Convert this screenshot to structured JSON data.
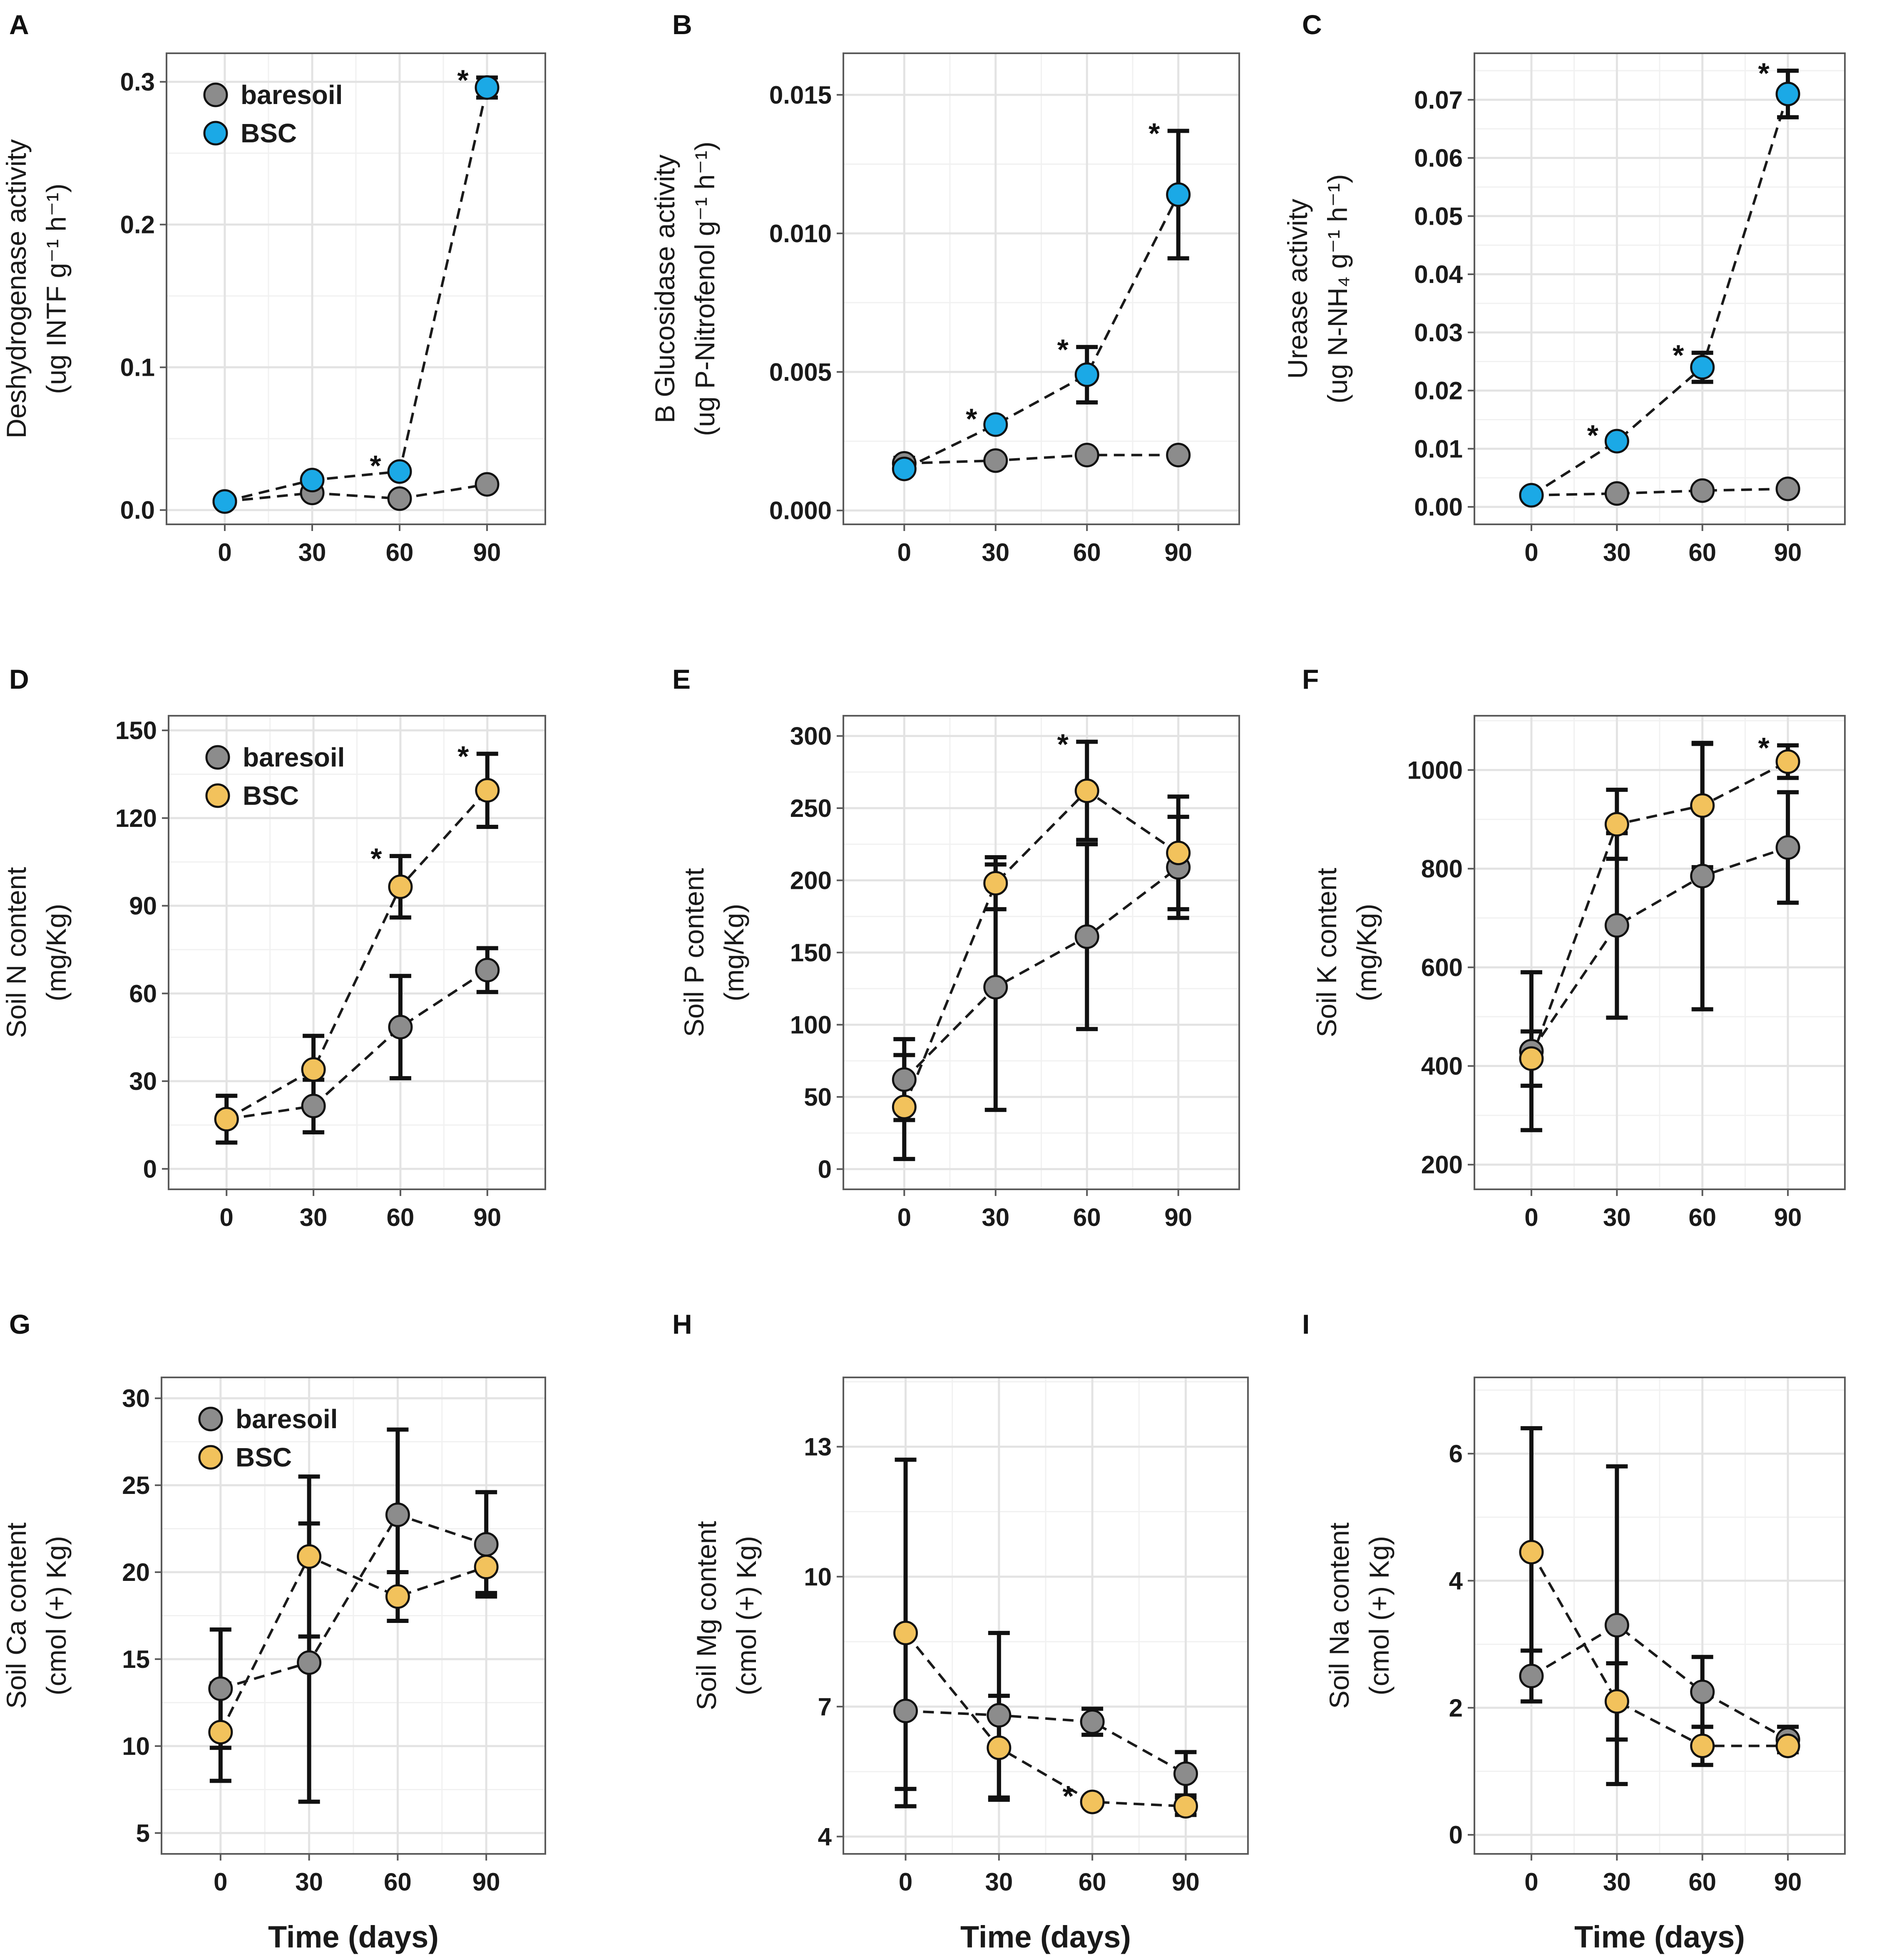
{
  "colors": {
    "baresoil": "#8c8c8c",
    "BSC_enzyme": "#1ba9e6",
    "BSC_nutrient": "#f2c25c"
  },
  "chart_data": [
    {
      "panel": "A",
      "type": "scatter",
      "ylabel_line1": "Deshydrogenase activity",
      "ylabel_line2": "(ug INTF g⁻¹ h⁻¹)",
      "xlabel": "",
      "x": [
        0,
        30,
        60,
        90
      ],
      "xlim": [
        -20,
        110
      ],
      "ylim": [
        -0.01,
        0.32
      ],
      "yticks": [
        0.0,
        0.1,
        0.2,
        0.3
      ],
      "ytick_labels": [
        "0.0",
        "0.1",
        "0.2",
        "0.3"
      ],
      "bsc_color": "#1ba9e6",
      "legend": [
        "baresoil",
        "BSC"
      ],
      "legend_position": "top-left",
      "series": [
        {
          "name": "baresoil",
          "values": [
            0.006,
            0.012,
            0.008,
            0.018
          ],
          "errors": [
            0,
            0,
            0,
            0
          ]
        },
        {
          "name": "BSC",
          "values": [
            0.006,
            0.021,
            0.027,
            0.296
          ],
          "errors": [
            0,
            0,
            0,
            0.007
          ]
        }
      ],
      "significant": [
        false,
        false,
        true,
        true
      ]
    },
    {
      "panel": "B",
      "type": "scatter",
      "ylabel_line1": "B Glucosidase activity",
      "ylabel_line2": "(ug P-Nitrofenol g⁻¹ h⁻¹)",
      "xlabel": "",
      "x": [
        0,
        30,
        60,
        90
      ],
      "xlim": [
        -20,
        110
      ],
      "ylim": [
        -0.0005,
        0.0165
      ],
      "yticks": [
        0.0,
        0.005,
        0.01,
        0.015
      ],
      "ytick_labels": [
        "0.000",
        "0.005",
        "0.010",
        "0.015"
      ],
      "bsc_color": "#1ba9e6",
      "legend": [],
      "legend_position": "",
      "series": [
        {
          "name": "baresoil",
          "values": [
            0.0017,
            0.0018,
            0.002,
            0.002
          ],
          "errors": [
            0.0002,
            0,
            0,
            0
          ]
        },
        {
          "name": "BSC",
          "values": [
            0.0015,
            0.0031,
            0.0049,
            0.0114
          ],
          "errors": [
            0,
            0,
            0.001,
            0.0023
          ]
        }
      ],
      "significant": [
        false,
        true,
        true,
        true
      ]
    },
    {
      "panel": "C",
      "type": "scatter",
      "ylabel_line1": "Urease activity",
      "ylabel_line2": "(ug N-NH₄ g⁻¹ h⁻¹)",
      "xlabel": "",
      "x": [
        0,
        30,
        60,
        90
      ],
      "xlim": [
        -20,
        110
      ],
      "ylim": [
        -0.003,
        0.078
      ],
      "yticks": [
        0.0,
        0.01,
        0.02,
        0.03,
        0.04,
        0.05,
        0.06,
        0.07
      ],
      "ytick_labels": [
        "0.00",
        "0.01",
        "0.02",
        "0.03",
        "0.04",
        "0.05",
        "0.06",
        "0.07"
      ],
      "bsc_color": "#1ba9e6",
      "legend": [],
      "legend_position": "",
      "series": [
        {
          "name": "baresoil",
          "values": [
            0.002,
            0.0023,
            0.0028,
            0.0031
          ],
          "errors": [
            0,
            0,
            0,
            0
          ]
        },
        {
          "name": "BSC",
          "values": [
            0.002,
            0.0113,
            0.024,
            0.071
          ],
          "errors": [
            0,
            0,
            0.0025,
            0.004
          ]
        }
      ],
      "significant": [
        false,
        true,
        true,
        true
      ]
    },
    {
      "panel": "D",
      "type": "scatter",
      "ylabel_line1": "Soil N content",
      "ylabel_line2": "(mg/Kg)",
      "xlabel": "",
      "x": [
        0,
        30,
        60,
        90
      ],
      "xlim": [
        -20,
        110
      ],
      "ylim": [
        -7,
        155
      ],
      "yticks": [
        0,
        30,
        60,
        90,
        120,
        150
      ],
      "ytick_labels": [
        "0",
        "30",
        "60",
        "90",
        "120",
        "150"
      ],
      "bsc_color": "#f2c25c",
      "legend": [
        "baresoil",
        "BSC"
      ],
      "legend_position": "top-left",
      "series": [
        {
          "name": "baresoil",
          "values": [
            17,
            21.5,
            48.5,
            68
          ],
          "errors": [
            8,
            9,
            17.5,
            7.5
          ]
        },
        {
          "name": "BSC",
          "values": [
            17,
            34,
            96.5,
            129.5
          ],
          "errors": [
            0,
            11.5,
            10.5,
            12.5
          ]
        }
      ],
      "significant": [
        false,
        false,
        true,
        true
      ]
    },
    {
      "panel": "E",
      "type": "scatter",
      "ylabel_line1": "Soil P content",
      "ylabel_line2": "(mg/Kg)",
      "xlabel": "",
      "x": [
        0,
        30,
        60,
        90
      ],
      "xlim": [
        -20,
        110
      ],
      "ylim": [
        -14,
        314
      ],
      "yticks": [
        0,
        50,
        100,
        150,
        200,
        250,
        300
      ],
      "ytick_labels": [
        "0",
        "50",
        "100",
        "150",
        "200",
        "250",
        "300"
      ],
      "bsc_color": "#f2c25c",
      "legend": [],
      "legend_position": "",
      "series": [
        {
          "name": "baresoil",
          "values": [
            62,
            126,
            161,
            209
          ],
          "errors": [
            28,
            85,
            64,
            35
          ]
        },
        {
          "name": "BSC",
          "values": [
            43,
            198,
            262,
            219
          ],
          "errors": [
            36,
            18,
            34,
            39
          ]
        }
      ],
      "significant": [
        false,
        false,
        true,
        false
      ]
    },
    {
      "panel": "F",
      "type": "scatter",
      "ylabel_line1": "Soil K content",
      "ylabel_line2": "(mg/Kg)",
      "xlabel": "",
      "x": [
        0,
        30,
        60,
        90
      ],
      "xlim": [
        -20,
        110
      ],
      "ylim": [
        150,
        1110
      ],
      "yticks": [
        200,
        400,
        600,
        800,
        1000
      ],
      "ytick_labels": [
        "200",
        "400",
        "600",
        "800",
        "1000"
      ],
      "bsc_color": "#f2c25c",
      "legend": [],
      "legend_position": "",
      "series": [
        {
          "name": "baresoil",
          "values": [
            430,
            685,
            785,
            843
          ],
          "errors": [
            160,
            187,
            270,
            112
          ]
        },
        {
          "name": "BSC",
          "values": [
            415,
            890,
            928,
            1017
          ],
          "errors": [
            55,
            70,
            125,
            33
          ]
        }
      ],
      "significant": [
        false,
        false,
        false,
        true
      ]
    },
    {
      "panel": "G",
      "type": "scatter",
      "ylabel_line1": "Soil Ca content",
      "ylabel_line2": "(cmol (+) Kg)",
      "xlabel": "Time (days)",
      "x": [
        0,
        30,
        60,
        90
      ],
      "xlim": [
        -20,
        110
      ],
      "ylim": [
        3.8,
        31.2
      ],
      "yticks": [
        5,
        10,
        15,
        20,
        25,
        30
      ],
      "ytick_labels": [
        "5",
        "10",
        "15",
        "20",
        "25",
        "30"
      ],
      "bsc_color": "#f2c25c",
      "legend": [
        "baresoil",
        "BSC"
      ],
      "legend_position": "top-left",
      "series": [
        {
          "name": "baresoil",
          "values": [
            13.3,
            14.8,
            23.3,
            21.6
          ],
          "errors": [
            3.4,
            8,
            4.9,
            3
          ]
        },
        {
          "name": "BSC",
          "values": [
            10.8,
            20.9,
            18.6,
            20.3
          ],
          "errors": [
            2.8,
            4.6,
            1.4,
            1.5
          ]
        }
      ],
      "significant": [
        false,
        false,
        false,
        false
      ]
    },
    {
      "panel": "H",
      "type": "scatter",
      "ylabel_line1": "Soil Mg content",
      "ylabel_line2": "(cmol (+) Kg)",
      "xlabel": "Time (days)",
      "x": [
        0,
        30,
        60,
        90
      ],
      "xlim": [
        -20,
        110
      ],
      "ylim": [
        3.6,
        14.6
      ],
      "yticks": [
        4,
        7,
        10,
        13
      ],
      "ytick_labels": [
        "4",
        "7",
        "10",
        "13"
      ],
      "bsc_color": "#f2c25c",
      "legend": [],
      "legend_position": "",
      "series": [
        {
          "name": "baresoil",
          "values": [
            6.9,
            6.8,
            6.65,
            5.45
          ],
          "errors": [
            1.8,
            1.9,
            0.3,
            0.5
          ]
        },
        {
          "name": "BSC",
          "values": [
            8.7,
            6.05,
            4.8,
            4.7
          ],
          "errors": [
            4,
            1.2,
            0,
            0.2
          ]
        }
      ],
      "significant": [
        false,
        false,
        true,
        false
      ]
    },
    {
      "panel": "I",
      "type": "scatter",
      "ylabel_line1": "Soil Na content",
      "ylabel_line2": "(cmol (+) Kg)",
      "xlabel": "Time (days)",
      "x": [
        0,
        30,
        60,
        90
      ],
      "xlim": [
        -20,
        110
      ],
      "ylim": [
        -0.3,
        7.2
      ],
      "yticks": [
        0,
        2,
        4,
        6
      ],
      "ytick_labels": [
        "0",
        "2",
        "4",
        "6"
      ],
      "bsc_color": "#f2c25c",
      "legend": [],
      "legend_position": "",
      "series": [
        {
          "name": "baresoil",
          "values": [
            2.5,
            3.3,
            2.25,
            1.5
          ],
          "errors": [
            0.4,
            2.5,
            0.55,
            0.2
          ]
        },
        {
          "name": "BSC",
          "values": [
            4.45,
            2.1,
            1.4,
            1.4
          ],
          "errors": [
            1.95,
            0.6,
            0.3,
            0
          ]
        }
      ],
      "significant": [
        false,
        false,
        false,
        false
      ]
    }
  ]
}
